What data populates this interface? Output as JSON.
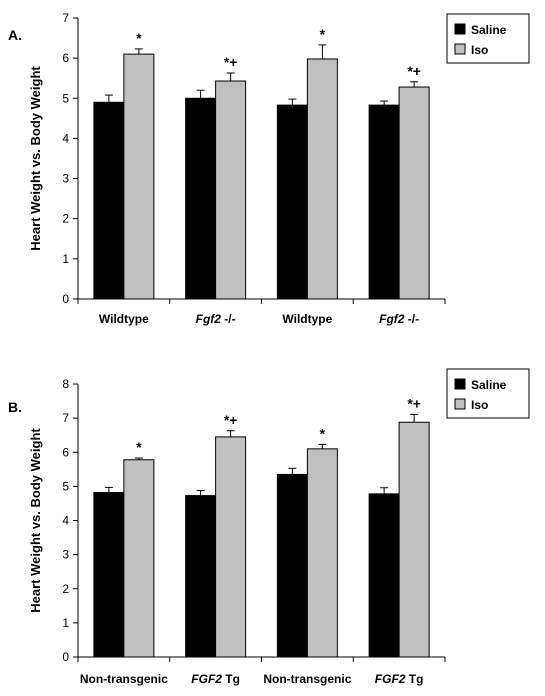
{
  "colors": {
    "saline": "#000000",
    "iso": "#c0c0c0"
  },
  "chart_data": [
    {
      "type": "bar",
      "panel_label": "A.",
      "categories": [
        {
          "pre": "",
          "italic": "",
          "post": "Wildtype"
        },
        {
          "pre": "",
          "italic": "Fgf2",
          "post": " -/-"
        },
        {
          "pre": "",
          "italic": "",
          "post": "Wildtype"
        },
        {
          "pre": "",
          "italic": "Fgf2",
          "post": " -/-"
        }
      ],
      "ylabel": "Heart Weight vs. Body Weight",
      "ylim": [
        0,
        7
      ],
      "yticks": [
        0,
        1,
        2,
        3,
        4,
        5,
        6,
        7
      ],
      "legend_position": "top-right",
      "series": [
        {
          "name": "Saline",
          "values": [
            4.9,
            5.0,
            4.83,
            4.83
          ],
          "errors": [
            0.18,
            0.2,
            0.15,
            0.1
          ],
          "annotations": [
            "",
            "",
            "",
            ""
          ]
        },
        {
          "name": "Iso",
          "values": [
            6.1,
            5.43,
            5.98,
            5.28
          ],
          "errors": [
            0.13,
            0.2,
            0.35,
            0.13
          ],
          "annotations": [
            "*",
            "*+",
            "*",
            "*+"
          ]
        }
      ]
    },
    {
      "type": "bar",
      "panel_label": "B.",
      "categories": [
        {
          "pre": "",
          "italic": "",
          "post": "Non-transgenic"
        },
        {
          "pre": "",
          "italic": "FGF2",
          "post": " Tg"
        },
        {
          "pre": "",
          "italic": "",
          "post": "Non-transgenic"
        },
        {
          "pre": "",
          "italic": "FGF2",
          "post": " Tg"
        }
      ],
      "ylabel": "Heart Weight vs. Body Weight",
      "ylim": [
        0,
        8
      ],
      "yticks": [
        0,
        1,
        2,
        3,
        4,
        5,
        6,
        7,
        8
      ],
      "legend_position": "top-right",
      "series": [
        {
          "name": "Saline",
          "values": [
            4.82,
            4.73,
            5.35,
            4.78
          ],
          "errors": [
            0.15,
            0.15,
            0.18,
            0.18
          ],
          "annotations": [
            "",
            "",
            "",
            ""
          ]
        },
        {
          "name": "Iso",
          "values": [
            5.78,
            6.45,
            6.1,
            6.88
          ],
          "errors": [
            0.05,
            0.18,
            0.13,
            0.23
          ],
          "annotations": [
            "*",
            "*+",
            "*",
            "*+"
          ]
        }
      ]
    }
  ]
}
